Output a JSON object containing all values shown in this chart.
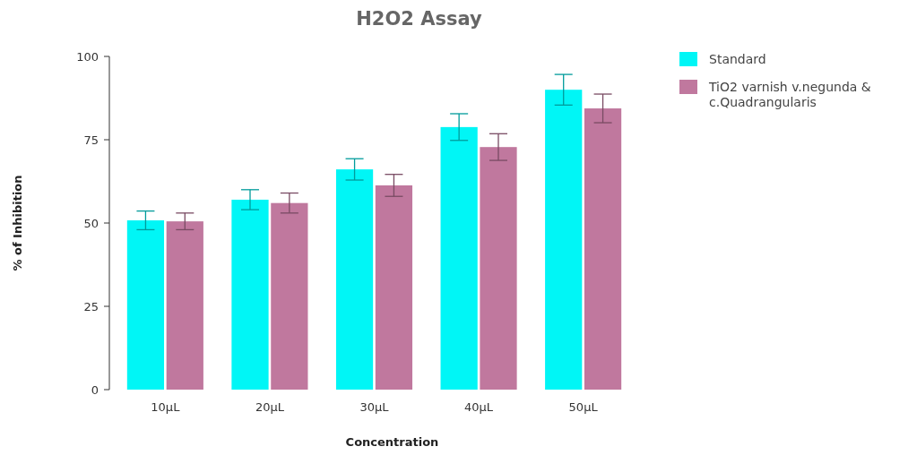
{
  "chart_data": {
    "type": "bar",
    "title": "H2O2 Assay",
    "xlabel": "Concentration",
    "ylabel": "% of Inhibition",
    "categories": [
      "10µL",
      "20µL",
      "30µL",
      "40µL",
      "50µL"
    ],
    "series": [
      {
        "name": "Standard",
        "color": "#00f6f6",
        "values": [
          50.8,
          57,
          66.1,
          78.8,
          90
        ],
        "errors": [
          2.8,
          3,
          3.2,
          4,
          4.6
        ]
      },
      {
        "name": "TiO2 varnish v.negunda & c.Quadrangularis",
        "color": "#c0789e",
        "values": [
          50.5,
          56,
          61.3,
          72.8,
          84.4
        ],
        "errors": [
          2.5,
          3,
          3.3,
          4,
          4.3
        ]
      }
    ],
    "ylim": [
      0,
      100
    ],
    "yticks": [
      0,
      25,
      50,
      75,
      100
    ],
    "grid": false,
    "legend": "top right"
  }
}
